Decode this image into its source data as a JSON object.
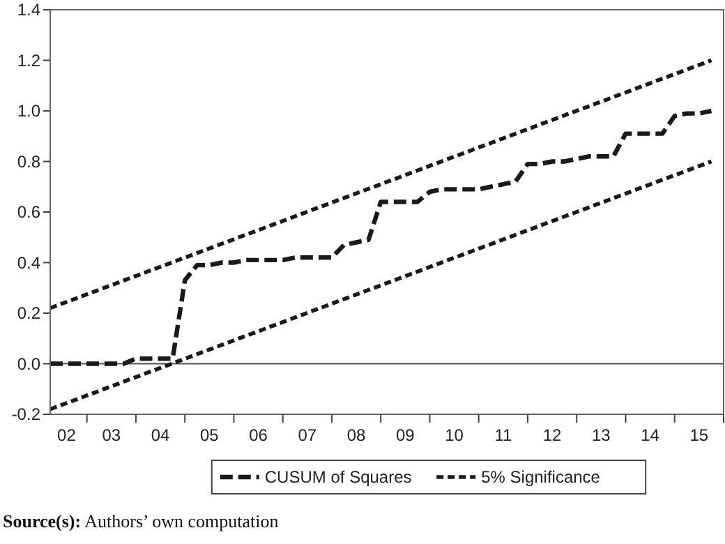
{
  "chart_data": {
    "type": "line",
    "xlim": [
      "2002-04",
      "2016-01"
    ],
    "ylim": [
      -0.2,
      1.4
    ],
    "yticks": [
      {
        "value": -0.2,
        "label": "-0.2"
      },
      {
        "value": 0,
        "label": "0.0"
      },
      {
        "value": 0.2,
        "label": "0.2"
      },
      {
        "value": 0.4,
        "label": "0.4"
      },
      {
        "value": 0.6,
        "label": "0.6"
      },
      {
        "value": 0.8,
        "label": "0.8"
      },
      {
        "value": 1,
        "label": "1.0"
      },
      {
        "value": 1.2,
        "label": "1.2"
      },
      {
        "value": 1.4,
        "label": "1.4"
      }
    ],
    "xticks": [
      {
        "value": "2002-08",
        "label": "02"
      },
      {
        "value": "2003-07",
        "label": "03"
      },
      {
        "value": "2004-07",
        "label": "04"
      },
      {
        "value": "2005-07",
        "label": "05"
      },
      {
        "value": "2006-07",
        "label": "06"
      },
      {
        "value": "2007-07",
        "label": "07"
      },
      {
        "value": "2008-07",
        "label": "08"
      },
      {
        "value": "2009-07",
        "label": "09"
      },
      {
        "value": "2010-07",
        "label": "10"
      },
      {
        "value": "2011-07",
        "label": "11"
      },
      {
        "value": "2012-07",
        "label": "12"
      },
      {
        "value": "2013-07",
        "label": "13"
      },
      {
        "value": "2014-07",
        "label": "14"
      },
      {
        "value": "2015-07",
        "label": "15"
      },
      {
        "value": "2003-01",
        "label": null
      },
      {
        "value": "2004-01",
        "label": null
      },
      {
        "value": "2005-01",
        "label": null
      },
      {
        "value": "2006-01",
        "label": null
      },
      {
        "value": "2007-01",
        "label": null
      },
      {
        "value": "2008-01",
        "label": null
      },
      {
        "value": "2009-01",
        "label": null
      },
      {
        "value": "2010-01",
        "label": null
      },
      {
        "value": "2011-01",
        "label": null
      },
      {
        "value": "2012-01",
        "label": null
      },
      {
        "value": "2013-01",
        "label": null
      },
      {
        "value": "2014-01",
        "label": null
      },
      {
        "value": "2015-01",
        "label": null
      },
      {
        "value": "2016-01",
        "label": null
      }
    ],
    "series": [
      {
        "name": "CUSUM of Squares",
        "color": "#1a1a1a",
        "line_style": "dashed",
        "x": [
          "2002-04",
          "2002-07",
          "2002-10",
          "2003-01",
          "2003-04",
          "2003-07",
          "2003-10",
          "2004-01",
          "2004-04",
          "2004-07",
          "2004-10",
          "2005-01",
          "2005-04",
          "2005-07",
          "2005-10",
          "2006-01",
          "2006-04",
          "2006-07",
          "2006-10",
          "2007-01",
          "2007-04",
          "2007-07",
          "2007-10",
          "2008-01",
          "2008-04",
          "2008-07",
          "2008-10",
          "2009-01",
          "2009-04",
          "2009-07",
          "2009-10",
          "2010-01",
          "2010-04",
          "2010-07",
          "2010-10",
          "2011-01",
          "2011-04",
          "2011-07",
          "2011-10",
          "2012-01",
          "2012-04",
          "2012-07",
          "2012-10",
          "2013-01",
          "2013-04",
          "2013-07",
          "2013-10",
          "2014-01",
          "2014-04",
          "2014-07",
          "2014-10",
          "2015-01",
          "2015-04",
          "2015-07",
          "2015-10"
        ],
        "values": [
          0,
          0,
          0,
          0,
          0,
          0,
          0,
          0.02,
          0.02,
          0.02,
          0.02,
          0.33,
          0.39,
          0.39,
          0.4,
          0.4,
          0.41,
          0.41,
          0.41,
          0.41,
          0.42,
          0.42,
          0.42,
          0.42,
          0.47,
          0.48,
          0.49,
          0.64,
          0.64,
          0.64,
          0.64,
          0.68,
          0.69,
          0.69,
          0.69,
          0.69,
          0.7,
          0.71,
          0.72,
          0.79,
          0.79,
          0.8,
          0.8,
          0.81,
          0.82,
          0.82,
          0.82,
          0.91,
          0.91,
          0.91,
          0.91,
          0.98,
          0.99,
          0.99,
          1.0
        ]
      },
      {
        "name": "5% Significance",
        "color": "#1a1a1a",
        "line_style": "dotted",
        "x": [
          "2002-04",
          "2015-10"
        ],
        "values": [
          0.22,
          1.2
        ]
      },
      {
        "color": "#1a1a1a",
        "line_style": "dotted",
        "x": [
          "2002-04",
          "2015-10"
        ],
        "values": [
          -0.18,
          0.8
        ]
      }
    ],
    "ref_lines": [
      {
        "axis": "y",
        "value": 0,
        "color": "#555555",
        "line_style": "solid"
      }
    ],
    "grid": false,
    "legend": "bottom",
    "annotations": [
      "Source(s): Authors’ own computation"
    ]
  }
}
